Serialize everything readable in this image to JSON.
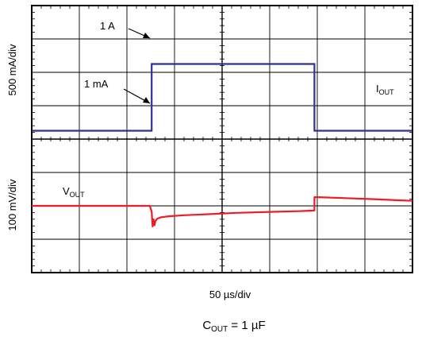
{
  "chart_data": {
    "type": "line",
    "title": "",
    "xlabel": "50 µs/div",
    "x_divisions": 8,
    "x_per_div_us": 50,
    "xlim_us": [
      0,
      400
    ],
    "grid": true,
    "caption": {
      "base": "C",
      "sub": "OUT",
      "rest": " = 1 µF"
    },
    "channels": [
      {
        "name": "IOUT",
        "label_base": "I",
        "label_sub": "OUT",
        "ylabel": "500 mA/div",
        "color": "#2e3192",
        "units": "mA",
        "per_div": 500,
        "ylim": [
          -1000,
          1000
        ],
        "x_us": [
          0,
          126,
          126,
          297,
          297,
          400
        ],
        "y": [
          -875,
          -875,
          125,
          125,
          -875,
          -875
        ]
      },
      {
        "name": "VOUT",
        "label_base": "V",
        "label_sub": "OUT",
        "ylabel": "100 mV/div",
        "color": "#ee1c25",
        "units": "mV",
        "per_div": 100,
        "ylim": [
          -200,
          200
        ],
        "x_us": [
          0,
          124,
          126,
          127,
          128,
          129,
          130,
          132,
          136,
          145,
          160,
          185,
          215,
          250,
          280,
          297,
          297,
          302,
          330,
          360,
          400
        ],
        "y": [
          0,
          0,
          -17,
          -62,
          -40,
          -58,
          -45,
          -38,
          -34,
          -31,
          -28,
          -25,
          -21,
          -18,
          -16,
          -14,
          26,
          26,
          23,
          20,
          15
        ]
      }
    ],
    "annotations": [
      {
        "text": "1 A"
      },
      {
        "text": "1 mA"
      }
    ]
  }
}
